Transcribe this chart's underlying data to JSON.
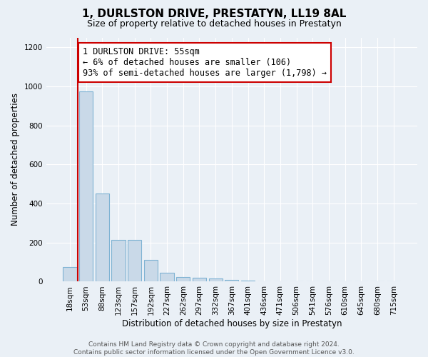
{
  "title": "1, DURLSTON DRIVE, PRESTATYN, LL19 8AL",
  "subtitle": "Size of property relative to detached houses in Prestatyn",
  "xlabel": "Distribution of detached houses by size in Prestatyn",
  "ylabel": "Number of detached properties",
  "bar_labels": [
    "18sqm",
    "53sqm",
    "88sqm",
    "123sqm",
    "157sqm",
    "192sqm",
    "227sqm",
    "262sqm",
    "297sqm",
    "332sqm",
    "367sqm",
    "401sqm",
    "436sqm",
    "471sqm",
    "506sqm",
    "541sqm",
    "576sqm",
    "610sqm",
    "645sqm",
    "680sqm",
    "715sqm"
  ],
  "bar_values": [
    75,
    975,
    450,
    215,
    215,
    110,
    45,
    25,
    20,
    15,
    10,
    5,
    3,
    2,
    1,
    1,
    0,
    0,
    0,
    0,
    0
  ],
  "bar_color": "#c9d9e8",
  "bar_edgecolor": "#7fb3d3",
  "ylim": [
    0,
    1250
  ],
  "yticks": [
    0,
    200,
    400,
    600,
    800,
    1000,
    1200
  ],
  "vline_color": "#cc0000",
  "annotation_text": "1 DURLSTON DRIVE: 55sqm\n← 6% of detached houses are smaller (106)\n93% of semi-detached houses are larger (1,798) →",
  "annotation_box_color": "#cc0000",
  "background_color": "#eaf0f6",
  "plot_bg_color": "#eaf0f6",
  "grid_color": "#ffffff",
  "footer_text": "Contains HM Land Registry data © Crown copyright and database right 2024.\nContains public sector information licensed under the Open Government Licence v3.0.",
  "title_fontsize": 11,
  "subtitle_fontsize": 9,
  "xlabel_fontsize": 8.5,
  "ylabel_fontsize": 8.5,
  "tick_fontsize": 7.5,
  "annotation_fontsize": 8.5
}
